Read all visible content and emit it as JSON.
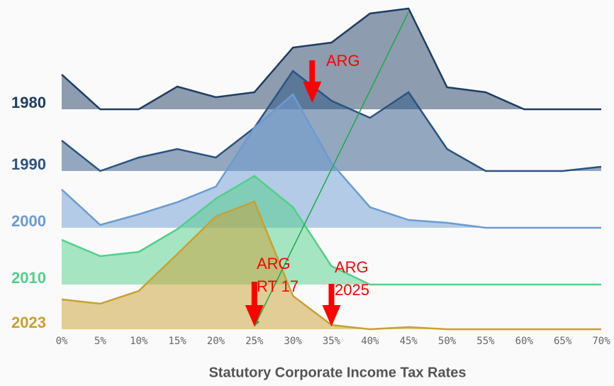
{
  "chart_data": {
    "type": "ridgeline",
    "title": "Statutory Corporate Income Tax Rates",
    "x": [
      0,
      5,
      10,
      15,
      20,
      25,
      30,
      35,
      40,
      45,
      50,
      55,
      60,
      65,
      70
    ],
    "xlim": [
      0,
      70
    ],
    "xticks": [
      {
        "value": 0,
        "label": "0%"
      },
      {
        "value": 5,
        "label": "5%"
      },
      {
        "value": 10,
        "label": "10%"
      },
      {
        "value": 15,
        "label": "15%"
      },
      {
        "value": 20,
        "label": "20%"
      },
      {
        "value": 25,
        "label": "25%"
      },
      {
        "value": 30,
        "label": "30%"
      },
      {
        "value": 35,
        "label": "35%"
      },
      {
        "value": 40,
        "label": "40%"
      },
      {
        "value": 45,
        "label": "45%"
      },
      {
        "value": 50,
        "label": "50%"
      },
      {
        "value": 55,
        "label": "55%"
      },
      {
        "value": 60,
        "label": "60%"
      },
      {
        "value": 65,
        "label": "65%"
      },
      {
        "value": 70,
        "label": "70%"
      }
    ],
    "ylim": [
      0,
      200
    ],
    "series": [
      {
        "name": "1980",
        "color": "#1f3d63",
        "values": [
          49,
          0,
          0,
          32,
          17,
          24,
          87,
          94,
          135,
          142,
          31,
          24,
          0,
          0,
          0
        ]
      },
      {
        "name": "1990",
        "color": "#2b5383",
        "values": [
          43,
          0,
          19,
          31,
          19,
          61,
          141,
          99,
          75,
          111,
          31,
          0,
          0,
          0,
          6
        ]
      },
      {
        "name": "2000",
        "color": "#6b9bd1",
        "values": [
          54,
          4,
          19,
          36,
          58,
          141,
          188,
          91,
          29,
          11,
          7,
          0,
          0,
          0,
          0
        ]
      },
      {
        "name": "2010",
        "color": "#52cf8a",
        "values": [
          63,
          40,
          46,
          78,
          121,
          153,
          109,
          26,
          0,
          0,
          0,
          0,
          0,
          0,
          0
        ]
      },
      {
        "name": "2023",
        "color": "#c9a032",
        "values": [
          42,
          36,
          54,
          106,
          159,
          180,
          47,
          6,
          0,
          3,
          0,
          0,
          0,
          0,
          0
        ]
      }
    ],
    "annotations": [
      {
        "lines": [
          "ARG"
        ],
        "x": 32.5,
        "color": "#ff0000"
      },
      {
        "lines": [
          "ARG",
          "RT 17"
        ],
        "x": 25,
        "color": "#ff0000"
      },
      {
        "lines": [
          "ARG",
          "2025"
        ],
        "x": 35,
        "color": "#ff0000"
      }
    ],
    "trend_arrow": {
      "from": 45,
      "to": 25,
      "color": "#1aaa4a"
    }
  }
}
